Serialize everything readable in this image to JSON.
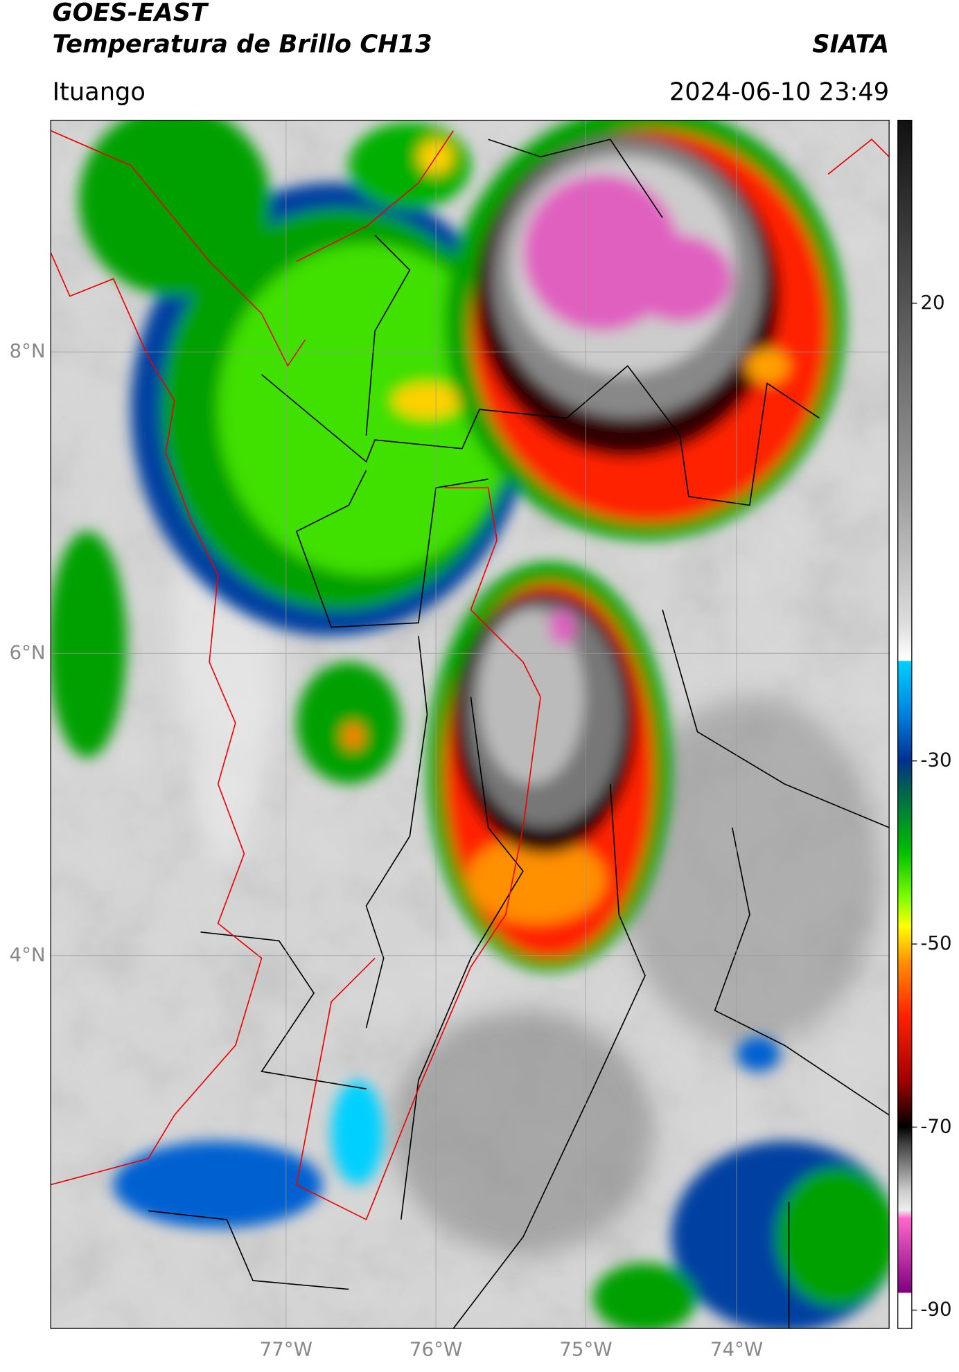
{
  "header": {
    "title": "GOES-EAST",
    "subtitle": "Temperatura de Brillo CH13",
    "brand": "SIATA",
    "location": "Ituango",
    "datetime": "2024-06-10 23:49"
  },
  "map": {
    "lat_labels": [
      "8°N",
      "6°N",
      "4°N"
    ],
    "lon_labels": [
      "77°W",
      "76°W",
      "75°W",
      "74°W"
    ]
  },
  "colorbar": {
    "lim": [
      -92,
      40
    ],
    "ticks": [
      20,
      -30,
      -50,
      -70,
      -90
    ]
  }
}
